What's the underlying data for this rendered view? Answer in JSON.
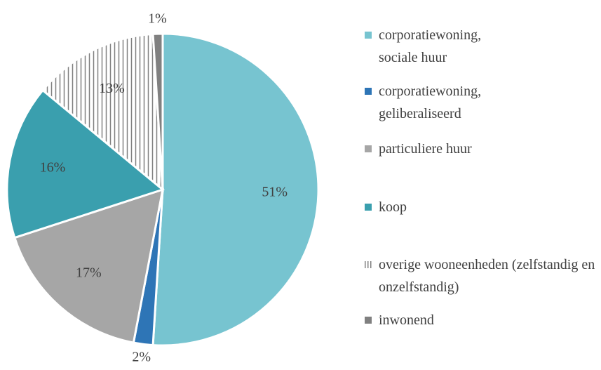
{
  "chart_data": {
    "type": "pie",
    "categories": [
      "corporatiewoning, sociale huur",
      "corporatiewoning, geliberaliseerd",
      "particuliere huur",
      "koop",
      "overige wooneenheden (zelfstandig en onzelfstandig)",
      "inwonend"
    ],
    "values": [
      51,
      2,
      17,
      16,
      13,
      1
    ],
    "value_labels": [
      "51%",
      "2%",
      "17%",
      "16%",
      "13%",
      "1%"
    ],
    "colors": [
      "#77c4d0",
      "#2e75b6",
      "#a6a6a6",
      "#3a9fae",
      "#ffffff",
      "#808080"
    ],
    "hatched": [
      false,
      false,
      false,
      false,
      true,
      false
    ],
    "legend": "right"
  }
}
